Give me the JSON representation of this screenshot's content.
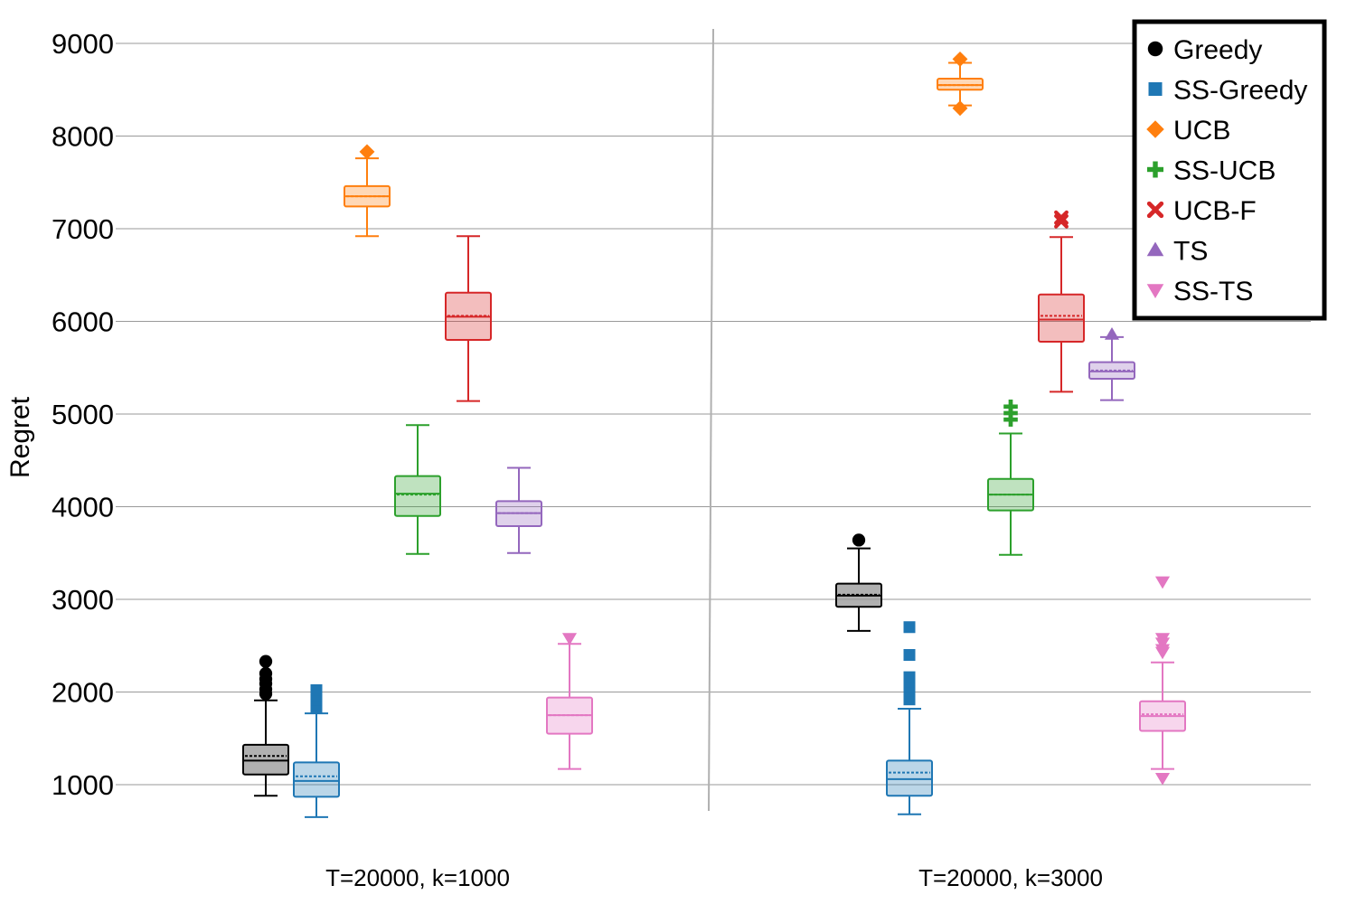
{
  "chart_data": {
    "type": "box",
    "ylabel": "Regret",
    "xlabel": "",
    "ylim": [
      500,
      9500
    ],
    "yticks": [
      1000,
      2000,
      3000,
      4000,
      5000,
      6000,
      7000,
      8000,
      9000
    ],
    "ytick_labels": [
      "1000",
      "2000",
      "3000",
      "4000",
      "5000",
      "6000",
      "7000",
      "8000",
      "9000"
    ],
    "grid": true,
    "legend_position": "top-right",
    "groups": [
      "T=20000, k=1000",
      "T=20000, k=3000"
    ],
    "series": [
      {
        "name": "Greedy",
        "color": "#000000",
        "marker": "circle",
        "boxes": [
          {
            "q1": 1110,
            "median": 1260,
            "mean": 1310,
            "q3": 1430,
            "whisker_low": 880,
            "whisker_high": 1910,
            "outliers": [
              1980,
              2030,
              2090,
              2140,
              2200,
              2330
            ]
          },
          {
            "q1": 2920,
            "median": 3040,
            "mean": 3050,
            "q3": 3170,
            "whisker_low": 2660,
            "whisker_high": 3550,
            "outliers": [
              3640
            ]
          }
        ]
      },
      {
        "name": "SS-Greedy",
        "color": "#1f77b4",
        "marker": "square",
        "boxes": [
          {
            "q1": 870,
            "median": 1040,
            "mean": 1090,
            "q3": 1240,
            "whisker_low": 650,
            "whisker_high": 1770,
            "outliers": [
              1830,
              1870,
              1920,
              1970,
              2020
            ]
          },
          {
            "q1": 880,
            "median": 1060,
            "mean": 1130,
            "q3": 1260,
            "whisker_low": 680,
            "whisker_high": 1820,
            "outliers": [
              1920,
              1960,
              2010,
              2060,
              2110,
              2160,
              2400,
              2700
            ]
          }
        ]
      },
      {
        "name": "UCB",
        "color": "#ff7f0e",
        "marker": "diamond",
        "boxes": [
          {
            "q1": 7240,
            "median": 7350,
            "mean": 7350,
            "q3": 7460,
            "whisker_low": 6920,
            "whisker_high": 7760,
            "outliers": [
              7830
            ]
          },
          {
            "q1": 8500,
            "median": 8550,
            "mean": 8550,
            "q3": 8620,
            "whisker_low": 8330,
            "whisker_high": 8790,
            "outliers": [
              8300,
              8830
            ]
          }
        ]
      },
      {
        "name": "SS-UCB",
        "color": "#2ca02c",
        "marker": "plus",
        "boxes": [
          {
            "q1": 3900,
            "median": 4140,
            "mean": 4130,
            "q3": 4330,
            "whisker_low": 3490,
            "whisker_high": 4880,
            "outliers": []
          },
          {
            "q1": 3960,
            "median": 4130,
            "mean": 4130,
            "q3": 4300,
            "whisker_low": 3480,
            "whisker_high": 4790,
            "outliers": [
              4940,
              5010,
              5080
            ]
          }
        ]
      },
      {
        "name": "UCB-F",
        "color": "#d62728",
        "marker": "x",
        "boxes": [
          {
            "q1": 5800,
            "median": 6050,
            "mean": 6060,
            "q3": 6310,
            "whisker_low": 5140,
            "whisker_high": 6920,
            "outliers": []
          },
          {
            "q1": 5780,
            "median": 6020,
            "mean": 6060,
            "q3": 6290,
            "whisker_low": 5240,
            "whisker_high": 6910,
            "outliers": [
              7080,
              7120
            ]
          }
        ]
      },
      {
        "name": "TS",
        "color": "#9467bd",
        "marker": "triangle-up",
        "boxes": [
          {
            "q1": 3790,
            "median": 3930,
            "mean": 3930,
            "q3": 4060,
            "whisker_low": 3500,
            "whisker_high": 4420,
            "outliers": []
          },
          {
            "q1": 5380,
            "median": 5460,
            "mean": 5470,
            "q3": 5560,
            "whisker_low": 5150,
            "whisker_high": 5830,
            "outliers": [
              5860
            ]
          }
        ]
      },
      {
        "name": "SS-TS",
        "color": "#e377c2",
        "marker": "triangle-down",
        "boxes": [
          {
            "q1": 1550,
            "median": 1750,
            "mean": 1750,
            "q3": 1940,
            "whisker_low": 1170,
            "whisker_high": 2520,
            "outliers": [
              2580
            ]
          },
          {
            "q1": 1580,
            "median": 1740,
            "mean": 1760,
            "q3": 1900,
            "whisker_low": 1170,
            "whisker_high": 2320,
            "outliers": [
              1070,
              2430,
              2460,
              2530,
              2580,
              3190
            ]
          }
        ]
      }
    ]
  }
}
